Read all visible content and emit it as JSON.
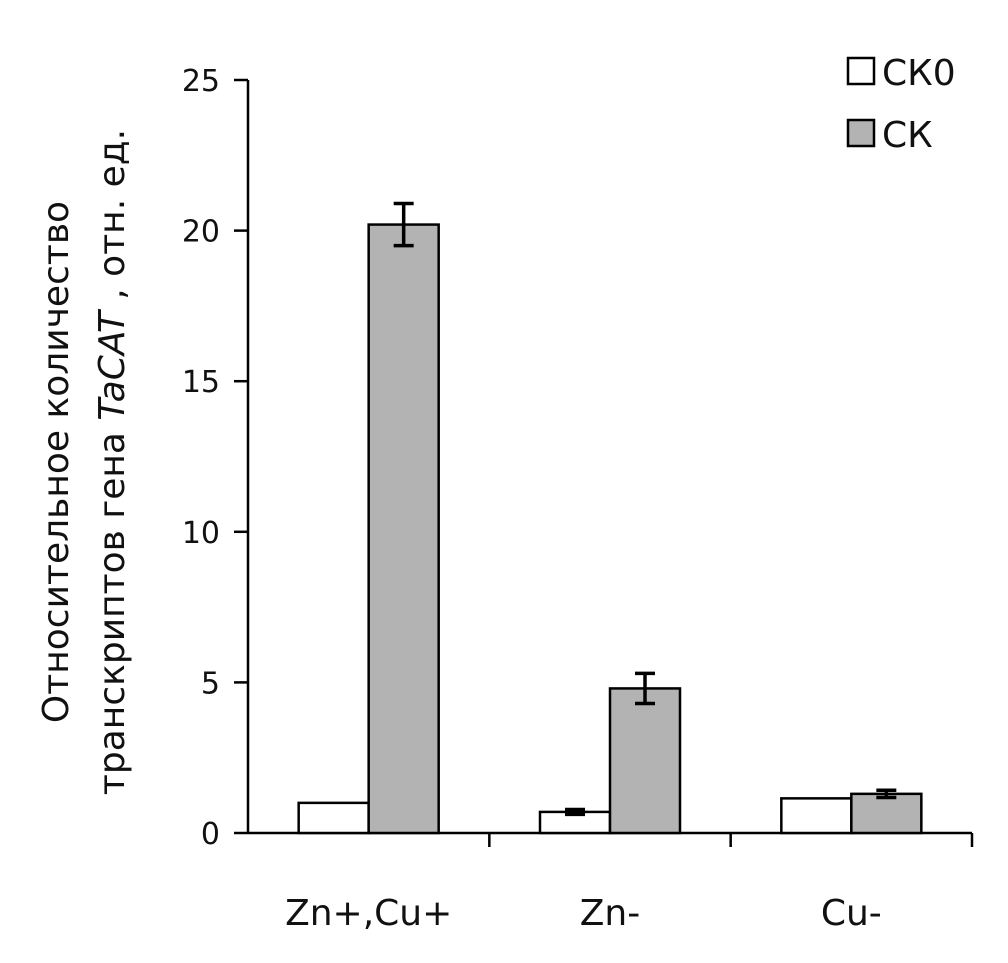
{
  "chart_data": {
    "type": "bar",
    "categories": [
      "Zn+,Cu+",
      "Zn-",
      "Cu-"
    ],
    "series": [
      {
        "name": "СК0",
        "values": [
          1.0,
          0.7,
          1.15
        ],
        "errors": [
          0,
          0.08,
          0
        ],
        "color": "#ffffff"
      },
      {
        "name": "СК",
        "values": [
          20.2,
          4.8,
          1.3
        ],
        "errors": [
          0.7,
          0.5,
          0.12
        ],
        "color": "#b3b3b3"
      }
    ],
    "ylabel": {
      "line1": "Относительное количество",
      "line2_prefix": "транскриптов гена ",
      "line2_italic": "TaCAT",
      "line2_suffix": ", отн. ед."
    },
    "ylim": [
      0,
      25
    ],
    "yticks": [
      "0",
      "5",
      "10",
      "15",
      "20",
      "25"
    ],
    "legend_position": "top-right",
    "grid": false
  }
}
